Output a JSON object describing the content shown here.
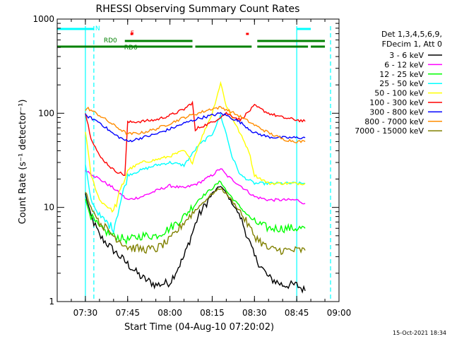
{
  "chart_data": {
    "type": "line",
    "title": "RHESSI Observing Summary Count Rates",
    "xlabel": "Start Time (04-Aug-10 07:20:02)",
    "ylabel": "Count Rate (s⁻¹ detector⁻¹)",
    "y_scale": "log",
    "ylim": [
      1,
      1000
    ],
    "xlim": [
      "07:20",
      "09:00"
    ],
    "x_tick_labels": [
      "07:30",
      "07:45",
      "08:00",
      "08:15",
      "08:30",
      "08:45",
      "09:00"
    ],
    "y_tick_labels": [
      "1",
      "10",
      "100",
      "1000"
    ],
    "grid": false,
    "legend_position": "right",
    "legend_header": [
      "Det 1,3,4,5,6,9,",
      "FDecim 1, Att 0"
    ],
    "series": [
      {
        "name": "3 - 6 keV",
        "color": "#000000",
        "x": [
          "07:30",
          "07:32",
          "07:35",
          "07:40",
          "07:45",
          "07:50",
          "07:55",
          "08:00",
          "08:05",
          "08:10",
          "08:15",
          "08:18",
          "08:20",
          "08:25",
          "08:30",
          "08:35",
          "08:40",
          "08:45",
          "08:48"
        ],
        "y": [
          14,
          8,
          5,
          3.5,
          2.5,
          1.8,
          1.5,
          1.6,
          3,
          8,
          14,
          17,
          14,
          8,
          3,
          1.8,
          1.5,
          1.5,
          1.3
        ]
      },
      {
        "name": "6 - 12 keV",
        "color": "#ff00ff",
        "x": [
          "07:30",
          "07:35",
          "07:40",
          "07:45",
          "07:50",
          "07:55",
          "08:00",
          "08:05",
          "08:10",
          "08:15",
          "08:18",
          "08:20",
          "08:25",
          "08:30",
          "08:35",
          "08:40",
          "08:45",
          "08:48"
        ],
        "y": [
          25,
          20,
          16,
          12,
          13,
          15,
          17,
          16,
          18,
          22,
          26,
          22,
          17,
          13,
          12,
          12,
          12,
          11
        ]
      },
      {
        "name": "12 - 25 keV",
        "color": "#00ff00",
        "x": [
          "07:30",
          "07:32",
          "07:35",
          "07:40",
          "07:45",
          "07:50",
          "07:55",
          "08:00",
          "08:05",
          "08:10",
          "08:15",
          "08:18",
          "08:20",
          "08:25",
          "08:30",
          "08:35",
          "08:40",
          "08:45",
          "08:48"
        ],
        "y": [
          12,
          8,
          6,
          5,
          4.5,
          5,
          5,
          6,
          8,
          12,
          16,
          19,
          15,
          10,
          7,
          6,
          6,
          6,
          6
        ]
      },
      {
        "name": "25 - 50 keV",
        "color": "#00ffff",
        "x": [
          "07:30",
          "07:32",
          "07:35",
          "07:40",
          "07:45",
          "07:50",
          "07:55",
          "08:00",
          "08:05",
          "08:10",
          "08:15",
          "08:18",
          "08:20",
          "08:22",
          "08:25",
          "08:30",
          "08:35",
          "08:40",
          "08:45",
          "08:48"
        ],
        "y": [
          28,
          12,
          8,
          6,
          22,
          25,
          28,
          30,
          28,
          45,
          60,
          95,
          60,
          35,
          22,
          18,
          18,
          18,
          18,
          18
        ]
      },
      {
        "name": "50 - 100 keV",
        "color": "#ffff00",
        "x": [
          "07:30",
          "07:32",
          "07:35",
          "07:40",
          "07:45",
          "07:50",
          "07:55",
          "08:00",
          "08:05",
          "08:08",
          "08:10",
          "08:15",
          "08:18",
          "08:20",
          "08:25",
          "08:28",
          "08:30",
          "08:35",
          "08:40",
          "08:45",
          "08:48"
        ],
        "y": [
          65,
          22,
          12,
          9,
          25,
          30,
          32,
          35,
          40,
          30,
          45,
          100,
          210,
          120,
          60,
          40,
          22,
          18,
          18,
          18,
          18
        ]
      },
      {
        "name": "100 - 300 keV",
        "color": "#ff0000",
        "x": [
          "07:30",
          "07:32",
          "07:35",
          "07:40",
          "07:44",
          "07:45",
          "07:50",
          "07:55",
          "08:00",
          "08:05",
          "08:08",
          "08:09",
          "08:10",
          "08:15",
          "08:20",
          "08:25",
          "08:30",
          "08:35",
          "08:40",
          "08:45",
          "08:48"
        ],
        "y": [
          100,
          55,
          35,
          25,
          22,
          80,
          82,
          85,
          95,
          110,
          130,
          65,
          70,
          80,
          100,
          85,
          120,
          100,
          90,
          85,
          82
        ]
      },
      {
        "name": "300 - 800 keV",
        "color": "#0000ff",
        "x": [
          "07:30",
          "07:35",
          "07:40",
          "07:45",
          "07:50",
          "07:55",
          "08:00",
          "08:05",
          "08:10",
          "08:15",
          "08:18",
          "08:20",
          "08:25",
          "08:30",
          "08:35",
          "08:40",
          "08:45",
          "08:48"
        ],
        "y": [
          95,
          80,
          60,
          50,
          55,
          60,
          68,
          78,
          88,
          95,
          100,
          95,
          80,
          62,
          56,
          55,
          55,
          55
        ]
      },
      {
        "name": "800 - 7000 keV",
        "color": "#ff8c00",
        "x": [
          "07:30",
          "07:31",
          "07:35",
          "07:40",
          "07:45",
          "07:50",
          "07:55",
          "08:00",
          "08:05",
          "08:10",
          "08:15",
          "08:18",
          "08:20",
          "08:25",
          "08:30",
          "08:35",
          "08:40",
          "08:45",
          "08:48"
        ],
        "y": [
          108,
          112,
          95,
          75,
          60,
          62,
          68,
          78,
          90,
          100,
          112,
          115,
          110,
          92,
          75,
          62,
          53,
          50,
          50
        ]
      },
      {
        "name": "7000 - 15000 keV",
        "color": "#808000",
        "x": [
          "07:30",
          "07:32",
          "07:35",
          "07:40",
          "07:45",
          "07:50",
          "07:55",
          "08:00",
          "08:05",
          "08:10",
          "08:15",
          "08:18",
          "08:20",
          "08:25",
          "08:30",
          "08:35",
          "08:40",
          "08:45",
          "08:48"
        ],
        "y": [
          15,
          10,
          7,
          5,
          3.8,
          3.6,
          3.6,
          4.5,
          7,
          10,
          14,
          16,
          14,
          9,
          5,
          3.6,
          3.5,
          3.5,
          3.5
        ]
      }
    ],
    "state_bars": [
      {
        "label": "N",
        "color": "#00ffff",
        "x_ranges": [
          [
            "07:20",
            "07:33"
          ],
          [
            "08:45",
            "08:50"
          ]
        ]
      },
      {
        "label": "F",
        "color": "#ff0000",
        "x_ranges": [
          [
            "07:46",
            "07:47"
          ],
          [
            "08:27",
            "08:28"
          ]
        ]
      },
      {
        "label": "RD0",
        "color": "#008000",
        "x_ranges": [
          [
            "07:44",
            "08:08"
          ],
          [
            "08:31",
            "08:55"
          ]
        ]
      },
      {
        "label": "RD6",
        "color": "#008000",
        "x_ranges": [
          [
            "07:20",
            "07:45"
          ],
          [
            "07:45",
            "08:08"
          ],
          [
            "08:09",
            "08:29"
          ],
          [
            "08:31",
            "08:49"
          ],
          [
            "08:50",
            "08:55"
          ]
        ]
      }
    ],
    "vertical_lines": [
      {
        "x": "07:30",
        "color": "#00ffff",
        "style": "solid"
      },
      {
        "x": "07:33",
        "color": "#00ffff",
        "style": "dashed"
      },
      {
        "x": "08:45",
        "color": "#00ffff",
        "style": "solid"
      },
      {
        "x": "08:57",
        "color": "#00ffff",
        "style": "dashed"
      }
    ]
  },
  "footer_timestamp": "15-Oct-2021 18:34"
}
